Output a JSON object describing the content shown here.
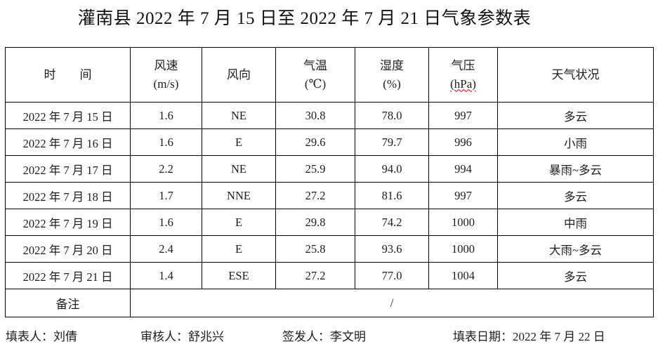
{
  "title": "灌南县 2022 年 7 月 15 日至 2022 年 7 月 21 日气象参数表",
  "table": {
    "headers": [
      {
        "label": "时　　间",
        "sub": ""
      },
      {
        "label": "风速",
        "sub": "(m/s)"
      },
      {
        "label": "风向",
        "sub": ""
      },
      {
        "label": "气温",
        "sub": "(℃)"
      },
      {
        "label": "湿度",
        "sub": "(%)"
      },
      {
        "label": "气压",
        "sub": "(hPa)"
      },
      {
        "label": "天气状况",
        "sub": ""
      }
    ],
    "rows": [
      [
        "2022 年 7 月 15 日",
        "1.6",
        "NE",
        "30.8",
        "78.0",
        "997",
        "多云"
      ],
      [
        "2022 年 7 月 16 日",
        "1.6",
        "E",
        "29.6",
        "79.7",
        "996",
        "小雨"
      ],
      [
        "2022 年 7 月 17 日",
        "2.2",
        "NE",
        "25.9",
        "94.0",
        "994",
        "暴雨~多云"
      ],
      [
        "2022 年 7 月 18 日",
        "1.7",
        "NNE",
        "27.2",
        "81.6",
        "997",
        "多云"
      ],
      [
        "2022 年 7 月 19 日",
        "1.6",
        "E",
        "29.8",
        "74.2",
        "1000",
        "中雨"
      ],
      [
        "2022 年 7 月 20 日",
        "2.4",
        "E",
        "25.8",
        "93.6",
        "1000",
        "大雨~多云"
      ],
      [
        "2022 年 7 月 21 日",
        "1.4",
        "ESE",
        "27.2",
        "77.0",
        "1004",
        "多云"
      ]
    ],
    "remark_label": "备注",
    "remark_value": "/"
  },
  "footer": {
    "preparer_label": "填表人：",
    "preparer_name": "刘倩",
    "reviewer_label": "审核人：",
    "reviewer_name": "舒兆兴",
    "issuer_label": "签发人：",
    "issuer_name": "李文明",
    "date_label": "填表日期：",
    "date_value": "2022 年 7 月 22 日"
  },
  "colors": {
    "text": "#1c1c1c",
    "border": "#000000",
    "spellcheck_squiggle": "#c00000",
    "background": "#ffffff"
  }
}
